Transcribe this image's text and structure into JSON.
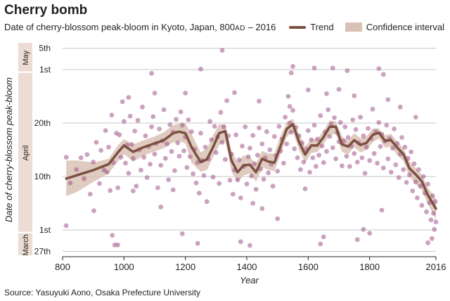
{
  "title": "Cherry bomb",
  "subtitle": {
    "before": "Date of cherry-blossom peak-bloom in Kyoto, Japan, 800",
    "era": "AD",
    "after": " – 2016"
  },
  "legend": {
    "trend": "Trend",
    "ci": "Confidence interval"
  },
  "source": "Source: Yasuyuki Aono, Osaka Prefecture University",
  "colors": {
    "trend": "#7b5042",
    "ci": "#d9c2b5",
    "points": "#a0558a",
    "band": "#ecdcd4",
    "grid": "#c7c7c7"
  },
  "chart_data": {
    "type": "scatter",
    "title": "Cherry bomb",
    "subtitle": "Date of cherry-blossom peak-bloom in Kyoto, Japan, 800AD – 2016",
    "xlabel": "Year",
    "ylabel": "Date of cherry-blossom peak-bloom",
    "xlim": [
      800,
      2016
    ],
    "ylim": [
      86,
      126
    ],
    "x_ticks": [
      800,
      1000,
      1200,
      1400,
      1600,
      1800,
      2016
    ],
    "y_ticks": [
      {
        "value": 87,
        "label": "27th"
      },
      {
        "value": 91,
        "label": "1st"
      },
      {
        "value": 101,
        "label": "10th"
      },
      {
        "value": 111,
        "label": "20th"
      },
      {
        "value": 121,
        "label": "1st"
      },
      {
        "value": 125,
        "label": "5th"
      }
    ],
    "month_bands": [
      {
        "label": "March",
        "from": 86,
        "to": 90.4
      },
      {
        "label": "April",
        "from": 90.4,
        "to": 120.4
      },
      {
        "label": "May",
        "from": 120.4,
        "to": 126
      }
    ],
    "trend": {
      "x": [
        812,
        850,
        900,
        950,
        980,
        1000,
        1030,
        1060,
        1100,
        1130,
        1160,
        1180,
        1200,
        1220,
        1250,
        1270,
        1290,
        1310,
        1330,
        1350,
        1370,
        1390,
        1410,
        1430,
        1450,
        1470,
        1490,
        1510,
        1530,
        1550,
        1570,
        1590,
        1610,
        1630,
        1650,
        1670,
        1690,
        1710,
        1730,
        1750,
        1770,
        1790,
        1810,
        1830,
        1850,
        1870,
        1890,
        1910,
        1930,
        1950,
        1970,
        1990,
        2016
      ],
      "y": [
        100.6,
        101.3,
        102.2,
        103.3,
        105.5,
        106.8,
        105.6,
        106.4,
        107.2,
        107.8,
        109.1,
        109.4,
        109.1,
        106.5,
        103.7,
        104.2,
        106.5,
        109.1,
        109.5,
        104.0,
        101.8,
        103.1,
        103.2,
        101.8,
        104.3,
        103.8,
        103.6,
        106.7,
        109.9,
        110.8,
        107.5,
        105.1,
        106.8,
        106.8,
        108.4,
        110.3,
        110.3,
        107.0,
        106.6,
        107.8,
        106.9,
        107.3,
        108.8,
        109.2,
        107.7,
        107.8,
        106.4,
        105.2,
        102.5,
        101.4,
        100.1,
        97.5,
        95.0
      ]
    },
    "confidence_interval": {
      "x": [
        812,
        850,
        900,
        950,
        980,
        1000,
        1030,
        1060,
        1100,
        1130,
        1160,
        1180,
        1200,
        1220,
        1250,
        1270,
        1290,
        1310,
        1330,
        1350,
        1370,
        1390,
        1410,
        1430,
        1450,
        1470,
        1490,
        1510,
        1530,
        1550,
        1570,
        1590,
        1610,
        1630,
        1650,
        1670,
        1690,
        1710,
        1730,
        1750,
        1770,
        1790,
        1810,
        1830,
        1850,
        1870,
        1890,
        1910,
        1930,
        1950,
        1970,
        1990,
        2016
      ],
      "upper": [
        104.0,
        104.0,
        103.6,
        104.3,
        106.8,
        108.0,
        107.0,
        107.7,
        108.5,
        109.3,
        110.6,
        110.9,
        110.9,
        109.0,
        105.5,
        106.2,
        108.7,
        110.8,
        110.7,
        105.7,
        103.7,
        105.0,
        104.6,
        103.4,
        105.8,
        105.3,
        105.3,
        108.6,
        111.2,
        111.8,
        109.0,
        106.6,
        108.0,
        108.0,
        109.6,
        111.5,
        111.3,
        108.5,
        107.7,
        109.1,
        108.2,
        108.5,
        110.0,
        110.0,
        108.7,
        109.0,
        107.5,
        106.3,
        103.8,
        102.6,
        101.3,
        98.9,
        96.8
      ],
      "lower": [
        97.3,
        98.2,
        100.0,
        101.6,
        103.8,
        105.2,
        103.8,
        104.8,
        105.7,
        106.3,
        107.4,
        107.6,
        107.2,
        103.6,
        101.9,
        102.2,
        104.6,
        106.9,
        107.7,
        102.0,
        99.9,
        101.2,
        101.6,
        100.0,
        102.7,
        102.3,
        102.0,
        105.1,
        108.4,
        109.4,
        106.0,
        103.6,
        105.4,
        105.6,
        107.1,
        108.8,
        109.0,
        105.6,
        105.2,
        106.5,
        105.5,
        106.0,
        107.4,
        108.1,
        106.4,
        106.6,
        105.0,
        103.9,
        101.0,
        99.6,
        98.5,
        95.8,
        93.0
      ]
    },
    "points": [
      [
        812,
        91.8
      ],
      [
        812,
        104.6
      ],
      [
        825,
        99.8
      ],
      [
        845,
        102.3
      ],
      [
        860,
        104.5
      ],
      [
        870,
        100.6
      ],
      [
        880,
        105.1
      ],
      [
        890,
        97.7
      ],
      [
        900,
        103.7
      ],
      [
        902,
        94.6
      ],
      [
        910,
        107.4
      ],
      [
        920,
        99.7
      ],
      [
        925,
        105.9
      ],
      [
        935,
        102.2
      ],
      [
        940,
        109.6
      ],
      [
        945,
        101.8
      ],
      [
        950,
        106.5
      ],
      [
        955,
        98.4
      ],
      [
        960,
        112.5
      ],
      [
        962,
        90.0
      ],
      [
        965,
        103.6
      ],
      [
        970,
        88.2
      ],
      [
        975,
        109.1
      ],
      [
        980,
        98.9
      ],
      [
        985,
        108.8
      ],
      [
        990,
        104.6
      ],
      [
        995,
        115.0
      ],
      [
        1000,
        111.3
      ],
      [
        1005,
        103.5
      ],
      [
        1010,
        106.9
      ],
      [
        1015,
        101.6
      ],
      [
        1020,
        112.3
      ],
      [
        1025,
        107.0
      ],
      [
        1030,
        104.4
      ],
      [
        1035,
        109.5
      ],
      [
        1040,
        99.2
      ],
      [
        1045,
        111.5
      ],
      [
        1050,
        106.0
      ],
      [
        1055,
        102.2
      ],
      [
        1060,
        114.0
      ],
      [
        1065,
        104.6
      ],
      [
        1070,
        108.6
      ],
      [
        1075,
        100.8
      ],
      [
        1080,
        106.6
      ],
      [
        1085,
        103.3
      ],
      [
        1090,
        110.3
      ],
      [
        1095,
        112.2
      ],
      [
        1100,
        105.2
      ],
      [
        1105,
        107.2
      ],
      [
        1110,
        98.9
      ],
      [
        1115,
        109.9
      ],
      [
        1120,
        103.1
      ],
      [
        1125,
        107.7
      ],
      [
        1130,
        113.5
      ],
      [
        1135,
        104.4
      ],
      [
        1140,
        107.1
      ],
      [
        1145,
        100.4
      ],
      [
        1150,
        110.7
      ],
      [
        1155,
        105.7
      ],
      [
        1160,
        109.3
      ],
      [
        1165,
        102.1
      ],
      [
        1170,
        111.7
      ],
      [
        1175,
        107.3
      ],
      [
        1180,
        104.8
      ],
      [
        1185,
        113.1
      ],
      [
        1190,
        110.6
      ],
      [
        1195,
        105.8
      ],
      [
        1200,
        108.4
      ],
      [
        1205,
        102.7
      ],
      [
        1210,
        111.6
      ],
      [
        1215,
        104.7
      ],
      [
        1220,
        109.4
      ],
      [
        1225,
        101.5
      ],
      [
        1230,
        106.1
      ],
      [
        1235,
        99.8
      ],
      [
        1240,
        103.6
      ],
      [
        1245,
        97.9
      ],
      [
        1250,
        109.1
      ],
      [
        1255,
        104.0
      ],
      [
        1260,
        101.2
      ],
      [
        1265,
        106.5
      ],
      [
        1270,
        96.3
      ],
      [
        1275,
        104.3
      ],
      [
        1280,
        111.3
      ],
      [
        1285,
        107.9
      ],
      [
        1290,
        100.9
      ],
      [
        1295,
        110.4
      ],
      [
        1300,
        105.5
      ],
      [
        1305,
        108.4
      ],
      [
        1310,
        99.7
      ],
      [
        1315,
        113.0
      ],
      [
        1320,
        107.4
      ],
      [
        1325,
        110.3
      ],
      [
        1330,
        104.2
      ],
      [
        1335,
        115.2
      ],
      [
        1340,
        108.6
      ],
      [
        1345,
        100.3
      ],
      [
        1350,
        105.2
      ],
      [
        1355,
        97.7
      ],
      [
        1360,
        102.2
      ],
      [
        1365,
        108.8
      ],
      [
        1370,
        100.4
      ],
      [
        1375,
        104.1
      ],
      [
        1380,
        97.0
      ],
      [
        1385,
        106.7
      ],
      [
        1390,
        102.9
      ],
      [
        1395,
        110.3
      ],
      [
        1400,
        99.6
      ],
      [
        1405,
        104.7
      ],
      [
        1410,
        106.3
      ],
      [
        1415,
        101.1
      ],
      [
        1420,
        108.7
      ],
      [
        1425,
        103.4
      ],
      [
        1430,
        98.6
      ],
      [
        1435,
        105.0
      ],
      [
        1440,
        110.1
      ],
      [
        1445,
        102.4
      ],
      [
        1450,
        107.1
      ],
      [
        1455,
        100.5
      ],
      [
        1460,
        104.5
      ],
      [
        1465,
        109.4
      ],
      [
        1470,
        101.7
      ],
      [
        1475,
        106.0
      ],
      [
        1480,
        103.3
      ],
      [
        1485,
        99.2
      ],
      [
        1490,
        108.5
      ],
      [
        1495,
        104.9
      ],
      [
        1500,
        102.0
      ],
      [
        1505,
        110.4
      ],
      [
        1510,
        105.8
      ],
      [
        1515,
        108.0
      ],
      [
        1520,
        103.5
      ],
      [
        1525,
        112.1
      ],
      [
        1530,
        107.1
      ],
      [
        1535,
        116.0
      ],
      [
        1540,
        111.0
      ],
      [
        1545,
        109.3
      ],
      [
        1550,
        113.4
      ],
      [
        1555,
        106.2
      ],
      [
        1560,
        110.2
      ],
      [
        1565,
        104.5
      ],
      [
        1570,
        108.6
      ],
      [
        1575,
        102.3
      ],
      [
        1580,
        107.3
      ],
      [
        1585,
        103.7
      ],
      [
        1590,
        98.7
      ],
      [
        1595,
        106.1
      ],
      [
        1600,
        109.6
      ],
      [
        1605,
        101.8
      ],
      [
        1610,
        107.9
      ],
      [
        1615,
        104.5
      ],
      [
        1620,
        110.6
      ],
      [
        1625,
        102.9
      ],
      [
        1630,
        108.0
      ],
      [
        1635,
        105.0
      ],
      [
        1640,
        112.4
      ],
      [
        1645,
        106.7
      ],
      [
        1650,
        103.6
      ],
      [
        1655,
        109.3
      ],
      [
        1660,
        105.7
      ],
      [
        1665,
        113.5
      ],
      [
        1670,
        108.5
      ],
      [
        1675,
        110.8
      ],
      [
        1680,
        106.4
      ],
      [
        1685,
        112.0
      ],
      [
        1690,
        104.3
      ],
      [
        1695,
        109.2
      ],
      [
        1700,
        107.5
      ],
      [
        1705,
        111.1
      ],
      [
        1710,
        103.0
      ],
      [
        1715,
        107.6
      ],
      [
        1720,
        110.3
      ],
      [
        1725,
        104.8
      ],
      [
        1730,
        108.3
      ],
      [
        1735,
        102.9
      ],
      [
        1740,
        106.7
      ],
      [
        1745,
        111.6
      ],
      [
        1750,
        105.3
      ],
      [
        1755,
        109.8
      ],
      [
        1760,
        103.7
      ],
      [
        1765,
        107.3
      ],
      [
        1770,
        112.1
      ],
      [
        1775,
        104.5
      ],
      [
        1780,
        108.6
      ],
      [
        1785,
        101.6
      ],
      [
        1790,
        106.5
      ],
      [
        1795,
        110.0
      ],
      [
        1800,
        104.0
      ],
      [
        1805,
        108.1
      ],
      [
        1810,
        113.6
      ],
      [
        1815,
        105.3
      ],
      [
        1820,
        109.4
      ],
      [
        1825,
        103.5
      ],
      [
        1830,
        111.1
      ],
      [
        1835,
        106.6
      ],
      [
        1840,
        108.9
      ],
      [
        1845,
        102.6
      ],
      [
        1850,
        107.6
      ],
      [
        1855,
        110.6
      ],
      [
        1860,
        104.3
      ],
      [
        1865,
        108.1
      ],
      [
        1870,
        101.8
      ],
      [
        1875,
        106.3
      ],
      [
        1880,
        109.9
      ],
      [
        1885,
        103.2
      ],
      [
        1890,
        107.2
      ],
      [
        1895,
        100.8
      ],
      [
        1900,
        105.2
      ],
      [
        1905,
        108.3
      ],
      [
        1910,
        102.3
      ],
      [
        1915,
        106.5
      ],
      [
        1920,
        99.9
      ],
      [
        1925,
        104.4
      ],
      [
        1930,
        101.3
      ],
      [
        1935,
        105.6
      ],
      [
        1940,
        98.3
      ],
      [
        1945,
        103.4
      ],
      [
        1950,
        100.0
      ],
      [
        1955,
        97.0
      ],
      [
        1960,
        102.3
      ],
      [
        1965,
        99.2
      ],
      [
        1970,
        95.6
      ],
      [
        1975,
        101.0
      ],
      [
        1980,
        97.9
      ],
      [
        1985,
        94.4
      ],
      [
        1990,
        99.6
      ],
      [
        1995,
        96.1
      ],
      [
        2000,
        92.9
      ],
      [
        2003,
        89.4
      ],
      [
        2005,
        97.4
      ],
      [
        2008,
        94.1
      ],
      [
        2011,
        91.1
      ],
      [
        2014,
        96.3
      ],
      [
        2016,
        92.5
      ],
      [
        1320,
        124.6
      ],
      [
        1545,
        120.4
      ],
      [
        1550,
        121.6
      ],
      [
        1620,
        121.3
      ],
      [
        1680,
        121.3
      ],
      [
        1727,
        120.8
      ],
      [
        1830,
        121.2
      ],
      [
        1090,
        120.3
      ],
      [
        1250,
        121.1
      ],
      [
        1845,
        120.1
      ],
      [
        1160,
        98.5
      ],
      [
        1120,
        95.3
      ],
      [
        1030,
        98.3
      ],
      [
        980,
        88.2
      ],
      [
        1190,
        90.3
      ],
      [
        1240,
        88.5
      ],
      [
        1380,
        88.8
      ],
      [
        1410,
        88.1
      ],
      [
        1640,
        88.4
      ],
      [
        1650,
        89.7
      ],
      [
        1760,
        89.2
      ],
      [
        1780,
        91.1
      ],
      [
        1800,
        90.4
      ],
      [
        1840,
        94.7
      ],
      [
        1990,
        88.6
      ],
      [
        1540,
        114.1
      ],
      [
        1500,
        93.1
      ],
      [
        1450,
        95.0
      ],
      [
        1420,
        96.0
      ],
      [
        1100,
        116.6
      ],
      [
        1015,
        115.8
      ],
      [
        1200,
        116.6
      ],
      [
        1360,
        116.7
      ],
      [
        1440,
        115.1
      ],
      [
        1600,
        117.2
      ],
      [
        1660,
        116.5
      ],
      [
        1700,
        117.3
      ],
      [
        1750,
        116.1
      ],
      [
        1860,
        115.4
      ],
      [
        1900,
        114.0
      ],
      [
        1950,
        112.1
      ]
    ]
  }
}
